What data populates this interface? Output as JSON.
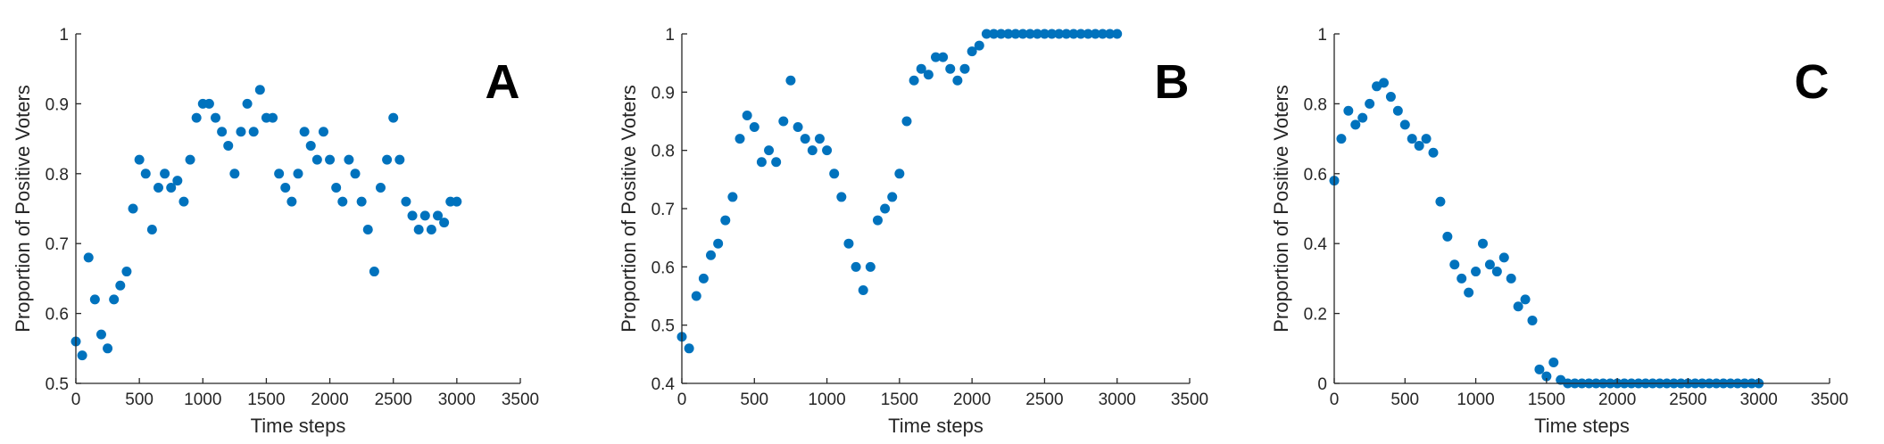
{
  "chart_data": [
    {
      "type": "scatter",
      "panel_label": "A",
      "xlabel": "Time steps",
      "ylabel": "Proportion of Positive Voters",
      "color": "#0072bd",
      "x": [
        0,
        50,
        100,
        150,
        200,
        250,
        300,
        350,
        400,
        450,
        500,
        550,
        600,
        650,
        700,
        750,
        800,
        850,
        900,
        950,
        1000,
        1050,
        1100,
        1150,
        1200,
        1250,
        1300,
        1350,
        1400,
        1450,
        1500,
        1550,
        1600,
        1650,
        1700,
        1750,
        1800,
        1850,
        1900,
        1950,
        2000,
        2050,
        2100,
        2150,
        2200,
        2250,
        2300,
        2350,
        2400,
        2450,
        2500,
        2550,
        2600,
        2650,
        2700,
        2750,
        2800,
        2850,
        2900,
        2950,
        3000
      ],
      "values": [
        0.56,
        0.54,
        0.68,
        0.62,
        0.57,
        0.55,
        0.62,
        0.64,
        0.66,
        0.75,
        0.82,
        0.8,
        0.72,
        0.78,
        0.8,
        0.78,
        0.79,
        0.76,
        0.82,
        0.88,
        0.9,
        0.9,
        0.88,
        0.86,
        0.84,
        0.8,
        0.86,
        0.9,
        0.86,
        0.92,
        0.88,
        0.88,
        0.8,
        0.78,
        0.76,
        0.8,
        0.86,
        0.84,
        0.82,
        0.86,
        0.82,
        0.78,
        0.76,
        0.82,
        0.8,
        0.76,
        0.72,
        0.66,
        0.78,
        0.82,
        0.88,
        0.82,
        0.76,
        0.74,
        0.72,
        0.74,
        0.72,
        0.74,
        0.73,
        0.76,
        0.76
      ],
      "xlim": [
        0,
        3500
      ],
      "xticks": [
        0,
        500,
        1000,
        1500,
        2000,
        2500,
        3000,
        3500
      ],
      "ylim": [
        0.5,
        1
      ],
      "yticks": [
        0.5,
        0.6,
        0.7,
        0.8,
        0.9,
        1
      ]
    },
    {
      "type": "scatter",
      "panel_label": "B",
      "xlabel": "Time steps",
      "ylabel": "Proportion of Positive Voters",
      "color": "#0072bd",
      "x": [
        0,
        50,
        100,
        150,
        200,
        250,
        300,
        350,
        400,
        450,
        500,
        550,
        600,
        650,
        700,
        750,
        800,
        850,
        900,
        950,
        1000,
        1050,
        1100,
        1150,
        1200,
        1250,
        1300,
        1350,
        1400,
        1450,
        1500,
        1550,
        1600,
        1650,
        1700,
        1750,
        1800,
        1850,
        1900,
        1950,
        2000,
        2050,
        2100,
        2150,
        2200,
        2250,
        2300,
        2350,
        2400,
        2450,
        2500,
        2550,
        2600,
        2650,
        2700,
        2750,
        2800,
        2850,
        2900,
        2950,
        3000
      ],
      "values": [
        0.48,
        0.46,
        0.55,
        0.58,
        0.62,
        0.64,
        0.68,
        0.72,
        0.82,
        0.86,
        0.84,
        0.78,
        0.8,
        0.78,
        0.85,
        0.92,
        0.84,
        0.82,
        0.8,
        0.82,
        0.8,
        0.76,
        0.72,
        0.64,
        0.6,
        0.56,
        0.6,
        0.68,
        0.7,
        0.72,
        0.76,
        0.85,
        0.92,
        0.94,
        0.93,
        0.96,
        0.96,
        0.94,
        0.92,
        0.94,
        0.97,
        0.98,
        1,
        1,
        1,
        1,
        1,
        1,
        1,
        1,
        1,
        1,
        1,
        1,
        1,
        1,
        1,
        1,
        1,
        1,
        1
      ],
      "xlim": [
        0,
        3500
      ],
      "xticks": [
        0,
        500,
        1000,
        1500,
        2000,
        2500,
        3000,
        3500
      ],
      "ylim": [
        0.4,
        1
      ],
      "yticks": [
        0.4,
        0.5,
        0.6,
        0.7,
        0.8,
        0.9,
        1
      ]
    },
    {
      "type": "scatter",
      "panel_label": "C",
      "xlabel": "Time steps",
      "ylabel": "Proportion of Positive Voters",
      "color": "#0072bd",
      "x": [
        0,
        50,
        100,
        150,
        200,
        250,
        300,
        350,
        400,
        450,
        500,
        550,
        600,
        650,
        700,
        750,
        800,
        850,
        900,
        950,
        1000,
        1050,
        1100,
        1150,
        1200,
        1250,
        1300,
        1350,
        1400,
        1450,
        1500,
        1550,
        1600,
        1650,
        1700,
        1750,
        1800,
        1850,
        1900,
        1950,
        2000,
        2050,
        2100,
        2150,
        2200,
        2250,
        2300,
        2350,
        2400,
        2450,
        2500,
        2550,
        2600,
        2650,
        2700,
        2750,
        2800,
        2850,
        2900,
        2950,
        3000
      ],
      "values": [
        0.58,
        0.7,
        0.78,
        0.74,
        0.76,
        0.8,
        0.85,
        0.86,
        0.82,
        0.78,
        0.74,
        0.7,
        0.68,
        0.7,
        0.66,
        0.52,
        0.42,
        0.34,
        0.3,
        0.26,
        0.32,
        0.4,
        0.34,
        0.32,
        0.36,
        0.3,
        0.22,
        0.24,
        0.18,
        0.04,
        0.02,
        0.06,
        0.01,
        0,
        0,
        0,
        0,
        0,
        0,
        0,
        0,
        0,
        0,
        0,
        0,
        0,
        0,
        0,
        0,
        0,
        0,
        0,
        0,
        0,
        0,
        0,
        0,
        0,
        0,
        0,
        0
      ],
      "xlim": [
        0,
        3500
      ],
      "xticks": [
        0,
        500,
        1000,
        1500,
        2000,
        2500,
        3000,
        3500
      ],
      "ylim": [
        0,
        1
      ],
      "yticks": [
        0,
        0.2,
        0.4,
        0.6,
        0.8,
        1
      ]
    }
  ]
}
